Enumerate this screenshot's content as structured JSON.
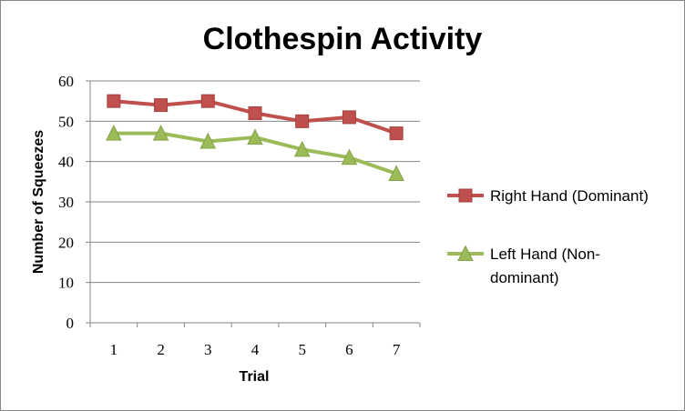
{
  "chart_data": {
    "type": "line",
    "title": "Clothespin Activity",
    "xlabel": "Trial",
    "ylabel": "Number of Squeezes",
    "x": [
      1,
      2,
      3,
      4,
      5,
      6,
      7
    ],
    "ylim": [
      0,
      60
    ],
    "y_ticks": [
      0,
      10,
      20,
      30,
      40,
      50,
      60
    ],
    "grid": "horizontal major gridlines",
    "legend_position": "right",
    "series": [
      {
        "name": "Right Hand (Dominant)",
        "legend_lines": [
          "Right Hand (Dominant)"
        ],
        "color": "#C0504D",
        "marker": "square",
        "values": [
          55,
          54,
          55,
          52,
          50,
          51,
          47
        ]
      },
      {
        "name": "Left Hand (Non-dominant)",
        "legend_lines": [
          "Left Hand (Non-",
          "dominant)"
        ],
        "color": "#9BBB59",
        "marker": "triangle",
        "values": [
          47,
          47,
          45,
          46,
          43,
          41,
          37
        ]
      }
    ]
  }
}
